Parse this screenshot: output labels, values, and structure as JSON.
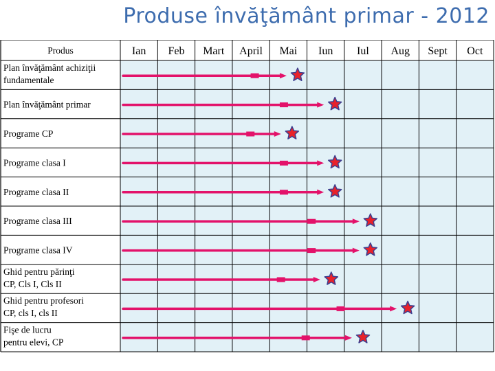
{
  "title": "Produse învăţământ primar - 2012",
  "colors": {
    "cell": "#e2f1f7",
    "grid": "#000000",
    "arrow": "#e3126a",
    "star_fill": "#e8222a",
    "star_stroke": "#3d3f8f",
    "title": "#3d6cae"
  },
  "header": {
    "product_label": "Produs",
    "months": [
      "Ian",
      "Feb",
      "Mart",
      "April",
      "Mai",
      "Iun",
      "Iul",
      "Aug",
      "Sept",
      "Oct"
    ]
  },
  "rows": [
    {
      "label": [
        "Plan învăţământ achiziţii",
        "fundamentale"
      ],
      "end": 4.75
    },
    {
      "label": [
        "Plan învăţământ primar"
      ],
      "end": 5.75
    },
    {
      "label": [
        "Programe CP"
      ],
      "end": 4.6
    },
    {
      "label": [
        "Programe clasa I"
      ],
      "end": 5.75
    },
    {
      "label": [
        "Programe clasa II"
      ],
      "end": 5.75
    },
    {
      "label": [
        "Programe clasa III"
      ],
      "end": 6.7
    },
    {
      "label": [
        "Programe clasa IV"
      ],
      "end": 6.7
    },
    {
      "label": [
        "Ghid pentru părinţi",
        "CP, Cls I, Cls II"
      ],
      "end": 5.65
    },
    {
      "label": [
        "Ghid pentru profesori",
        "CP, cls I, cls II"
      ],
      "end": 7.7
    },
    {
      "label": [
        "Fişe de lucru",
        "pentru elevi, CP"
      ],
      "end": 6.5
    }
  ]
}
